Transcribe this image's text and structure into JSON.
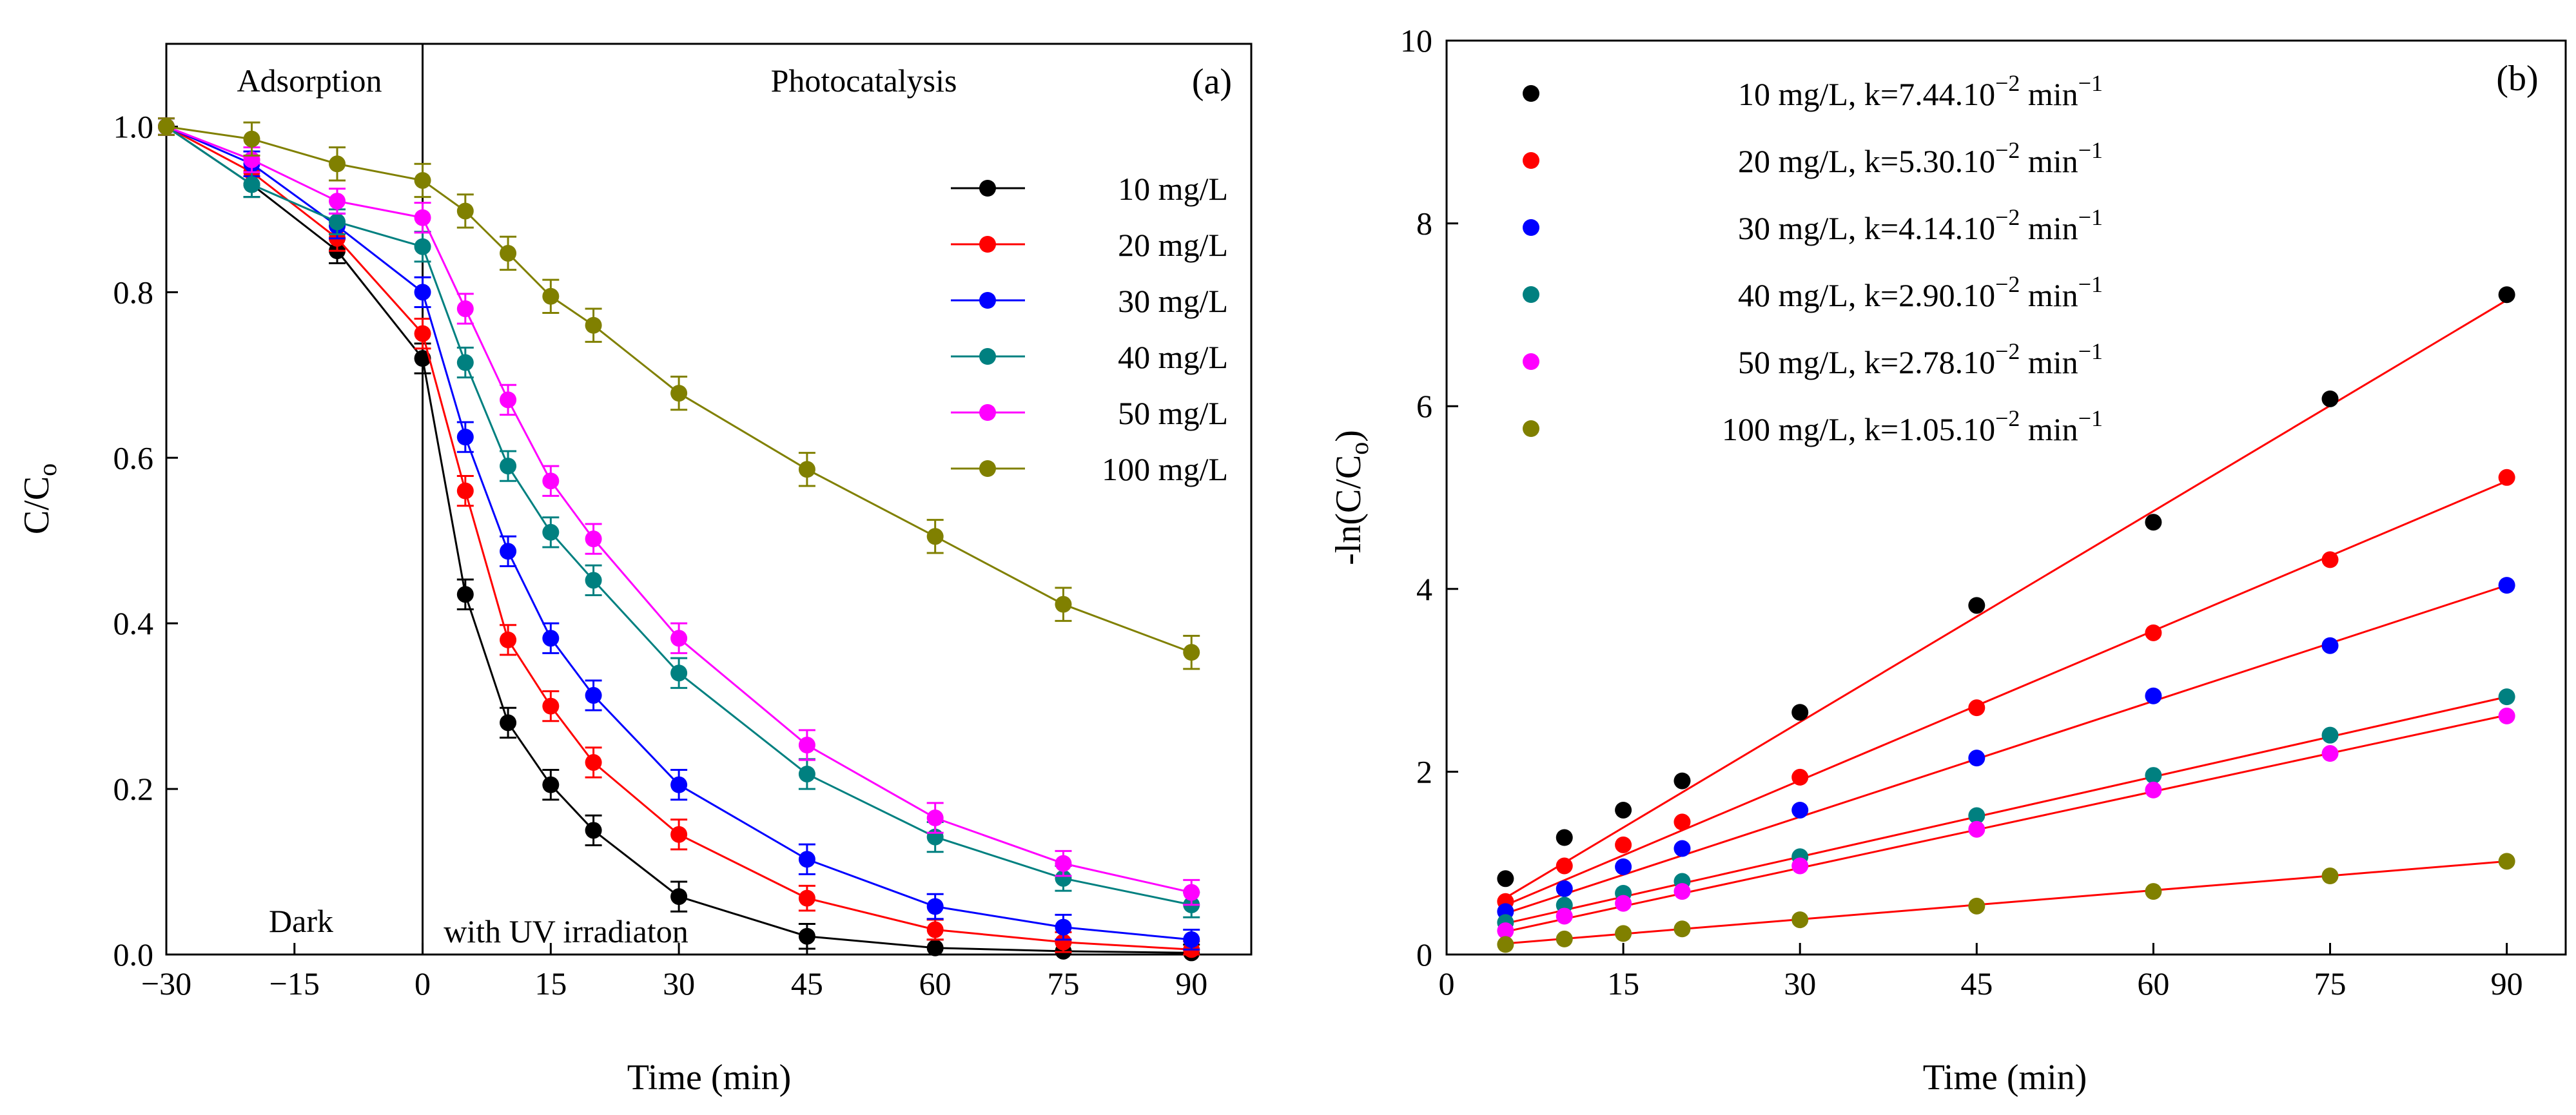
{
  "chart_data": [
    {
      "type": "line",
      "panel_label": "(a)",
      "xlabel": "Time (min)",
      "ylabel": "C/C",
      "ylabel_sub": "o",
      "xlim": [
        -30,
        97
      ],
      "ylim": [
        0,
        1.1
      ],
      "xticks": [
        "-30",
        "-15",
        "0",
        "15",
        "30",
        "45",
        "60",
        "75",
        "90"
      ],
      "yticks": [
        "0.0",
        "0.2",
        "0.4",
        "0.6",
        "0.8",
        "1.0"
      ],
      "annotations": {
        "adsorption": "Adsorption",
        "photocatalysis": "Photocatalysis",
        "dark": "Dark",
        "uv": "with UV irradiaton"
      },
      "x": [
        -30,
        -20,
        -10,
        0,
        5,
        10,
        15,
        20,
        30,
        45,
        60,
        75,
        90
      ],
      "series": [
        {
          "name": "10 mg/L",
          "color": "#000000",
          "values": [
            1.0,
            0.93,
            0.85,
            0.72,
            0.435,
            0.28,
            0.205,
            0.15,
            0.07,
            0.022,
            0.008,
            0.004,
            0.002
          ],
          "err": [
            0.01,
            0.015,
            0.015,
            0.018,
            0.018,
            0.018,
            0.018,
            0.018,
            0.018,
            0.015,
            0.01,
            0.01,
            0.01
          ]
        },
        {
          "name": "20 mg/L",
          "color": "#ff0000",
          "values": [
            1.0,
            0.945,
            0.865,
            0.75,
            0.56,
            0.38,
            0.3,
            0.232,
            0.145,
            0.068,
            0.03,
            0.015,
            0.006
          ],
          "err": [
            0.01,
            0.015,
            0.015,
            0.018,
            0.018,
            0.018,
            0.018,
            0.018,
            0.018,
            0.015,
            0.012,
            0.012,
            0.01
          ]
        },
        {
          "name": "30 mg/L",
          "color": "#0000ff",
          "values": [
            1.0,
            0.955,
            0.88,
            0.8,
            0.625,
            0.487,
            0.382,
            0.313,
            0.205,
            0.115,
            0.058,
            0.033,
            0.018
          ],
          "err": [
            0.01,
            0.015,
            0.015,
            0.018,
            0.018,
            0.018,
            0.018,
            0.018,
            0.018,
            0.018,
            0.015,
            0.015,
            0.012
          ]
        },
        {
          "name": "40 mg/L",
          "color": "#008080",
          "values": [
            1.0,
            0.93,
            0.885,
            0.855,
            0.715,
            0.59,
            0.51,
            0.452,
            0.34,
            0.218,
            0.142,
            0.092,
            0.06
          ],
          "err": [
            0.01,
            0.015,
            0.015,
            0.018,
            0.018,
            0.018,
            0.018,
            0.018,
            0.018,
            0.018,
            0.018,
            0.015,
            0.015
          ]
        },
        {
          "name": "50 mg/L",
          "color": "#ff00ff",
          "values": [
            1.0,
            0.96,
            0.91,
            0.89,
            0.78,
            0.67,
            0.572,
            0.502,
            0.382,
            0.253,
            0.165,
            0.11,
            0.075
          ],
          "err": [
            0.01,
            0.015,
            0.015,
            0.018,
            0.018,
            0.018,
            0.018,
            0.018,
            0.018,
            0.018,
            0.018,
            0.015,
            0.015
          ]
        },
        {
          "name": "100 mg/L",
          "color": "#808000",
          "values": [
            1.0,
            0.985,
            0.955,
            0.935,
            0.898,
            0.847,
            0.795,
            0.76,
            0.678,
            0.586,
            0.505,
            0.423,
            0.365
          ],
          "err": [
            0.01,
            0.02,
            0.02,
            0.02,
            0.02,
            0.02,
            0.02,
            0.02,
            0.02,
            0.02,
            0.02,
            0.02,
            0.02
          ]
        }
      ]
    },
    {
      "type": "scatter",
      "panel_label": "(b)",
      "xlabel": "Time (min)",
      "ylabel": "-ln(C/C",
      "ylabel_sub": "o",
      "ylabel_end": ")",
      "xlim": [
        0,
        95
      ],
      "ylim": [
        0,
        10
      ],
      "xticks": [
        "0",
        "15",
        "30",
        "45",
        "60",
        "75",
        "90"
      ],
      "yticks": [
        "0",
        "2",
        "4",
        "6",
        "8",
        "10"
      ],
      "fit_color": "#ff0000",
      "x": [
        5,
        10,
        15,
        20,
        30,
        45,
        60,
        75,
        90
      ],
      "series": [
        {
          "name": "10 mg/L, k=7.44.10",
          "exp": "−2",
          "unit": " min",
          "unit_exp": "−1",
          "color": "#000000",
          "values": [
            0.83,
            1.28,
            1.58,
            1.9,
            2.65,
            3.82,
            4.73,
            6.08,
            7.22
          ],
          "fit": [
            0.62,
            7.16
          ]
        },
        {
          "name": "20 mg/L, k=5.30.10",
          "exp": "−2",
          "unit": " min",
          "unit_exp": "−1",
          "color": "#ff0000",
          "values": [
            0.58,
            0.97,
            1.2,
            1.45,
            1.94,
            2.7,
            3.52,
            4.32,
            5.22
          ],
          "fit": [
            0.54,
            5.18
          ]
        },
        {
          "name": "30 mg/L, k=4.14.10",
          "exp": "−2",
          "unit": " min",
          "unit_exp": "−1",
          "color": "#0000ff",
          "values": [
            0.47,
            0.72,
            0.96,
            1.16,
            1.58,
            2.15,
            2.83,
            3.38,
            4.04
          ],
          "fit": [
            0.45,
            4.04
          ]
        },
        {
          "name": "40 mg/L, k=2.90.10",
          "exp": "−2",
          "unit": " min",
          "unit_exp": "−1",
          "color": "#008080",
          "values": [
            0.35,
            0.54,
            0.67,
            0.8,
            1.07,
            1.52,
            1.96,
            2.4,
            2.82
          ],
          "fit": [
            0.34,
            2.82
          ]
        },
        {
          "name": "50 mg/L, k=2.78.10",
          "exp": "−2",
          "unit": " min",
          "unit_exp": "−1",
          "color": "#ff00ff",
          "values": [
            0.26,
            0.42,
            0.56,
            0.69,
            0.97,
            1.37,
            1.8,
            2.2,
            2.61
          ],
          "fit": [
            0.25,
            2.62
          ]
        },
        {
          "name": "100 mg/L, k=1.05.10",
          "exp": "−2",
          "unit": " min",
          "unit_exp": "−1",
          "color": "#808000",
          "values": [
            0.11,
            0.17,
            0.23,
            0.28,
            0.38,
            0.53,
            0.69,
            0.86,
            1.02
          ],
          "fit": [
            0.12,
            1.02
          ]
        }
      ]
    }
  ]
}
